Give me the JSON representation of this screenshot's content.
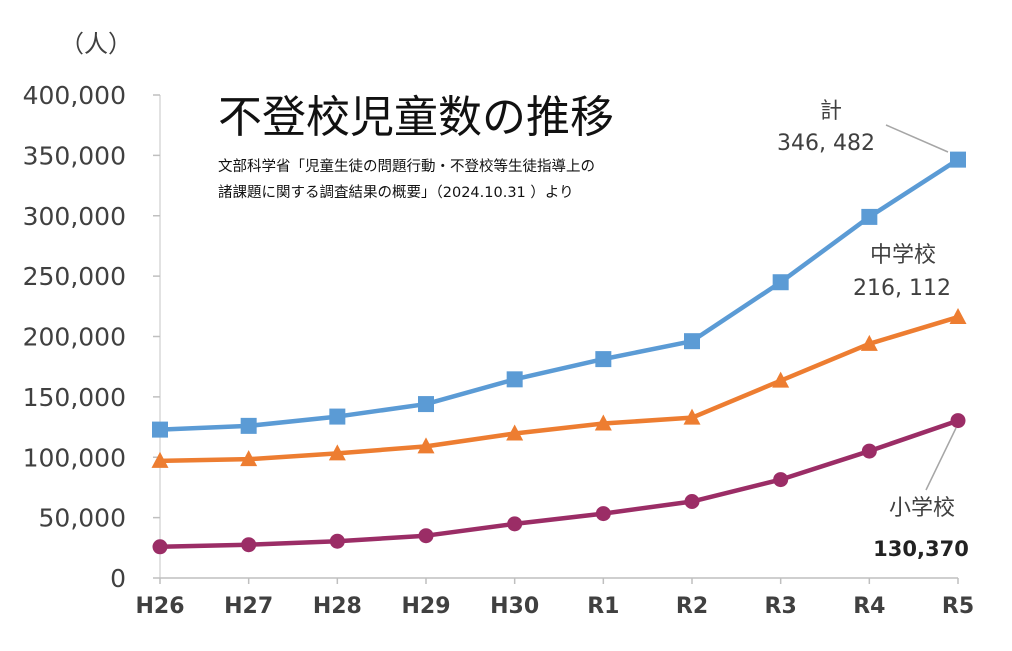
{
  "chart_data": {
    "type": "line",
    "title": "不登校児童数の推移",
    "source_line1": "文部科学省「児童生徒の問題行動・不登校等生徒指導上の",
    "source_line2": "諸課題に関する調査結果の概要」（2024.10.31 ）より",
    "ylabel": "（人）",
    "ylim": [
      0,
      400000
    ],
    "y_ticks": [
      "0",
      "50,000",
      "100,000",
      "150,000",
      "200,000",
      "250,000",
      "300,000",
      "350,000",
      "400,000"
    ],
    "categories": [
      "H26",
      "H27",
      "H28",
      "H29",
      "H30",
      "R1",
      "R2",
      "R3",
      "R4",
      "R5"
    ],
    "series": [
      {
        "name": "計",
        "color": "#5B9BD5",
        "marker": "square",
        "values": [
          122897,
          125991,
          133683,
          144031,
          164528,
          181272,
          196127,
          244940,
          299048,
          346482
        ],
        "label": "計",
        "value_label": "346, 482"
      },
      {
        "name": "中学校",
        "color": "#ED7D31",
        "marker": "triangle",
        "values": [
          97033,
          98408,
          103235,
          108999,
          119687,
          127922,
          132777,
          163442,
          193936,
          216112
        ],
        "label": "中学校",
        "value_label": "216, 112"
      },
      {
        "name": "小学校",
        "color": "#9B2D66",
        "marker": "circle",
        "values": [
          25864,
          27583,
          30448,
          35032,
          44841,
          53350,
          63350,
          81498,
          105112,
          130370
        ],
        "label": "小学校",
        "value_label": "130,370"
      }
    ]
  }
}
